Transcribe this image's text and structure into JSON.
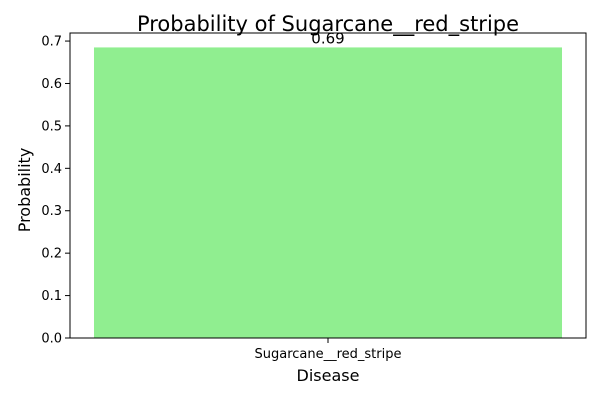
{
  "chart_data": {
    "type": "bar",
    "title": "Probability of Sugarcane__red_stripe",
    "xlabel": "Disease",
    "ylabel": "Probability",
    "categories": [
      "Sugarcane__red_stripe"
    ],
    "values": [
      0.685
    ],
    "data_labels": [
      "0.69"
    ],
    "ylim": [
      0,
      0.719
    ],
    "yticks": [
      0.0,
      0.1,
      0.2,
      0.3,
      0.4,
      0.5,
      0.6,
      0.7
    ],
    "ytick_labels": [
      "0.0",
      "0.1",
      "0.2",
      "0.3",
      "0.4",
      "0.5",
      "0.6",
      "0.7"
    ],
    "grid": false,
    "legend": "none",
    "colors": {
      "bar": "#90ee90",
      "axis": "#000000",
      "background": "#ffffff"
    }
  }
}
